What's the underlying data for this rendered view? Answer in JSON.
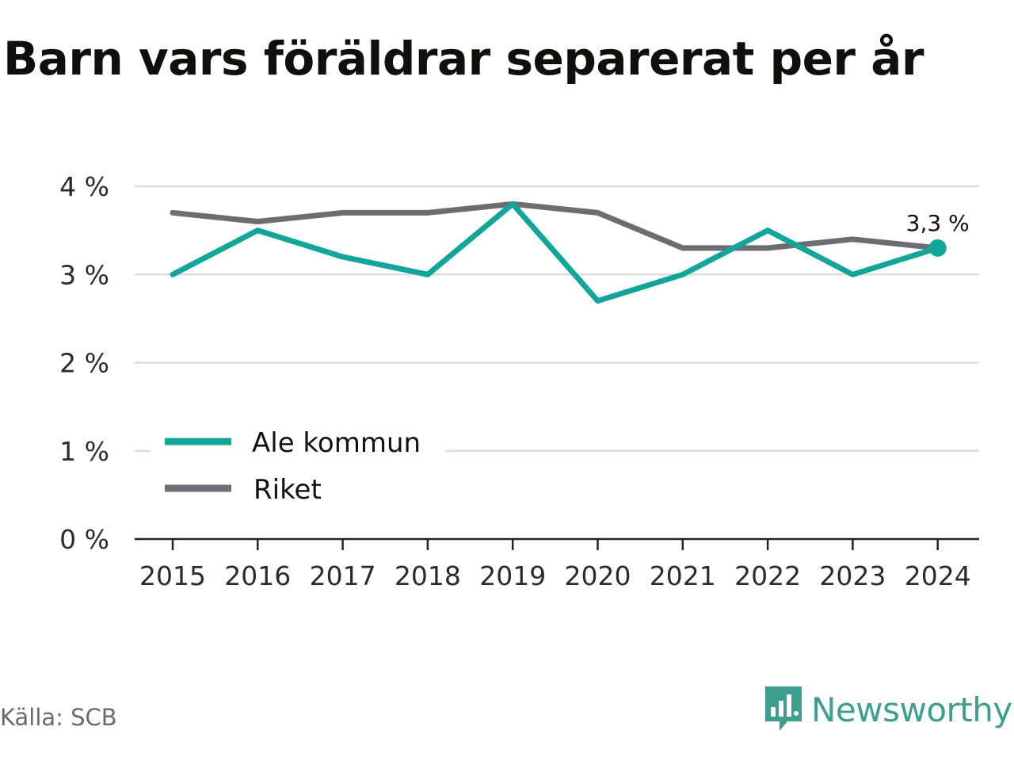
{
  "title": "Barn vars föräldrar separerat per år",
  "source": "Källa: SCB",
  "brand": "Newsworthy",
  "colors": {
    "ale": "#12a59a",
    "riket": "#6e6c73",
    "grid": "#dcdcdc",
    "axis": "#222222",
    "brand": "#3f9d8f"
  },
  "chart_data": {
    "type": "line",
    "title": "Barn vars föräldrar separerat per år",
    "x": [
      "2015",
      "2016",
      "2017",
      "2018",
      "2019",
      "2020",
      "2021",
      "2022",
      "2023",
      "2024"
    ],
    "series": [
      {
        "name": "Ale kommun",
        "color": "#12a59a",
        "values": [
          3.0,
          3.5,
          3.2,
          3.0,
          3.8,
          2.7,
          3.0,
          3.5,
          3.0,
          3.3
        ]
      },
      {
        "name": "Riket",
        "color": "#6e6c73",
        "values": [
          3.7,
          3.6,
          3.7,
          3.7,
          3.8,
          3.7,
          3.3,
          3.3,
          3.4,
          3.3
        ]
      }
    ],
    "ylim": [
      0,
      4
    ],
    "yticks": [
      0,
      1,
      2,
      3,
      4
    ],
    "ytick_labels": [
      "0 %",
      "1 %",
      "2 %",
      "3 %",
      "4 %"
    ],
    "end_label": "3,3 %",
    "grid": true,
    "legend": "bottom-left"
  }
}
